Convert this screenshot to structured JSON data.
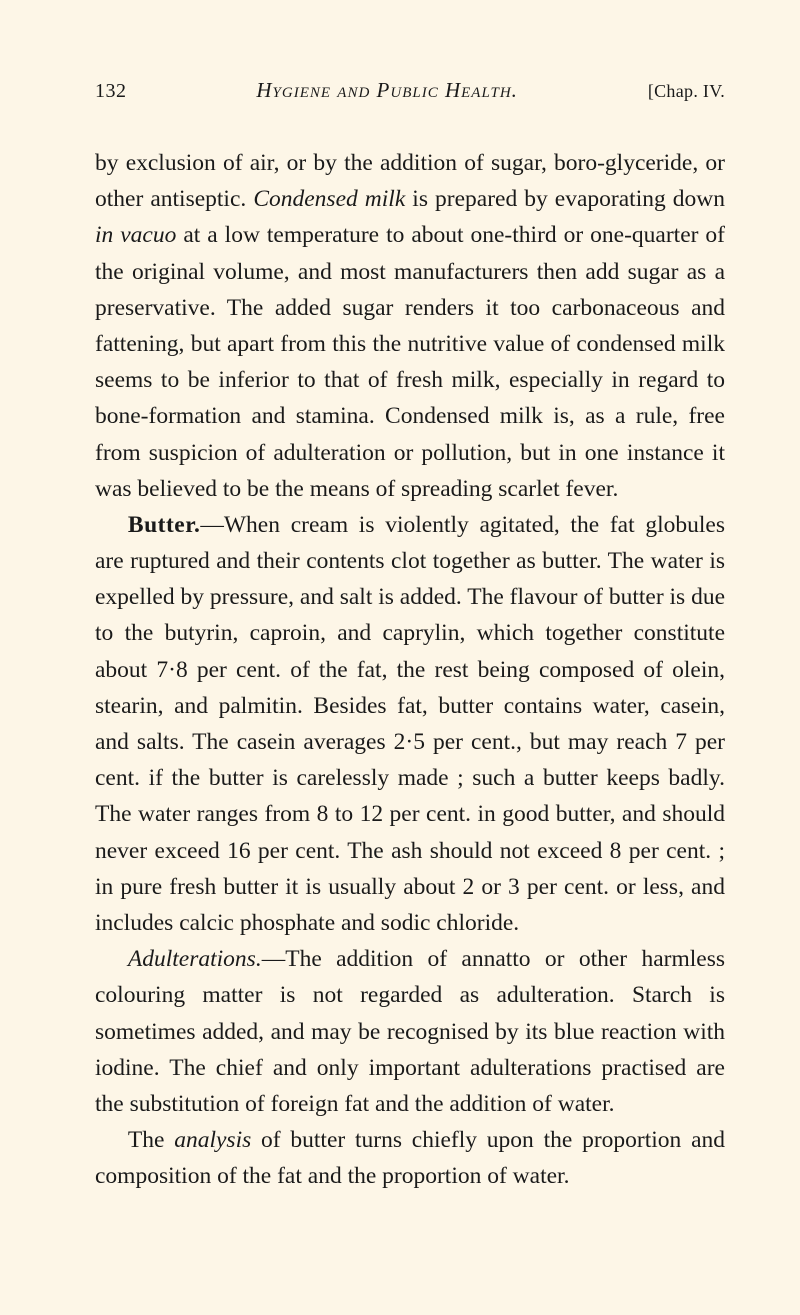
{
  "header": {
    "page_number": "132",
    "book_title": "Hygiene and Public Health.",
    "chapter": "[Chap. IV."
  },
  "paragraphs": {
    "p1": "by exclusion of air, or by the addition of sugar, boro-glyceride, or other antiseptic. ",
    "p1_italic1": "Condensed milk",
    "p1_b": " is prepared by evaporating down ",
    "p1_italic2": "in vacuo",
    "p1_c": " at a low temperature to about one-third or one-quarter of the original volume, and most manufacturers then add sugar as a preservative. The added sugar renders it too carbonaceous and fattening, but apart from this the nutritive value of condensed milk seems to be inferior to that of fresh milk, especially in regard to bone-formation and stamina. Condensed milk is, as a rule, free from suspicion of adulteration or pollution, but in one instance it was believed to be the means of spreading scarlet fever.",
    "p2_bold": "Butter.",
    "p2": "—When cream is violently agitated, the fat globules are ruptured and their contents clot together as butter. The water is expelled by pressure, and salt is added. The flavour of butter is due to the butyrin, caproin, and caprylin, which together constitute about 7·8 per cent. of the fat, the rest being composed of olein, stearin, and palmitin. Besides fat, butter contains water, casein, and salts. The casein averages 2·5 per cent., but may reach 7 per cent. if the butter is carelessly made ; such a butter keeps badly. The water ranges from 8 to 12 per cent. in good butter, and should never exceed 16 per cent. The ash should not exceed 8 per cent. ; in pure fresh butter it is usually about 2 or 3 per cent. or less, and includes calcic phosphate and sodic chloride.",
    "p3_italic": "Adulterations.",
    "p3": "—The addition of annatto or other harmless colouring matter is not regarded as adultera­tion. Starch is sometimes added, and may be recog­nised by its blue reaction with iodine. The chief and only important adulterations practised are the substi­tution of foreign fat and the addition of water.",
    "p4_a": "The ",
    "p4_italic": "analysis",
    "p4_b": " of butter turns chiefly upon the pro­portion and composition of the fat and the proportion of water."
  },
  "colors": {
    "background": "#fdf6e7",
    "text": "#1a1a1a"
  },
  "typography": {
    "body_font_size": 23.5,
    "body_line_height": 1.54,
    "header_font_size": 20
  }
}
